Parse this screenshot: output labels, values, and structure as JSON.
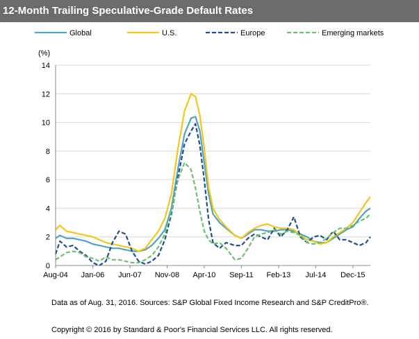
{
  "title": "12-Month Trailing Speculative-Grade Default Rates",
  "note": "Data as of Aug. 31, 2016. Sources: S&P Global Fixed Income Research and S&P CreditPro®.",
  "copyright": "Copyright © 2016 by Standard & Poor's Financial Services LLC. All rights reserved.",
  "chart_data": {
    "type": "line",
    "ylabel": "(%)",
    "ylim": [
      0,
      14
    ],
    "yticks": [
      0,
      2,
      4,
      6,
      8,
      10,
      12,
      14
    ],
    "xlim": [
      "2004-08",
      "2016-08"
    ],
    "xticks": [
      "Aug-04",
      "Jan-06",
      "Jun-07",
      "Nov-08",
      "Apr-10",
      "Sep-11",
      "Feb-13",
      "Jul-14",
      "Dec-15"
    ],
    "grid": "horizontal",
    "legend": "top",
    "series": [
      {
        "name": "Global",
        "color": "#4fa3c7",
        "style": "solid",
        "points": [
          [
            "2004-08",
            1.9
          ],
          [
            "2004-10",
            2.1
          ],
          [
            "2005-01",
            1.9
          ],
          [
            "2005-04",
            1.9
          ],
          [
            "2005-07",
            1.8
          ],
          [
            "2005-10",
            1.7
          ],
          [
            "2006-01",
            1.5
          ],
          [
            "2006-04",
            1.4
          ],
          [
            "2006-07",
            1.3
          ],
          [
            "2006-10",
            1.2
          ],
          [
            "2007-01",
            1.2
          ],
          [
            "2007-04",
            1.1
          ],
          [
            "2007-07",
            1.0
          ],
          [
            "2007-10",
            1.0
          ],
          [
            "2008-01",
            1.1
          ],
          [
            "2008-04",
            1.4
          ],
          [
            "2008-07",
            1.9
          ],
          [
            "2008-10",
            2.5
          ],
          [
            "2009-01",
            4.0
          ],
          [
            "2009-04",
            6.8
          ],
          [
            "2009-07",
            9.2
          ],
          [
            "2009-10",
            10.3
          ],
          [
            "2009-12",
            10.4
          ],
          [
            "2010-02",
            9.4
          ],
          [
            "2010-04",
            7.2
          ],
          [
            "2010-06",
            5.0
          ],
          [
            "2010-08",
            3.6
          ],
          [
            "2010-11",
            3.0
          ],
          [
            "2011-02",
            2.6
          ],
          [
            "2011-06",
            2.1
          ],
          [
            "2011-09",
            1.9
          ],
          [
            "2011-12",
            2.2
          ],
          [
            "2012-03",
            2.5
          ],
          [
            "2012-06",
            2.5
          ],
          [
            "2012-09",
            2.4
          ],
          [
            "2012-12",
            2.4
          ],
          [
            "2013-03",
            2.5
          ],
          [
            "2013-06",
            2.5
          ],
          [
            "2013-09",
            2.4
          ],
          [
            "2013-12",
            2.2
          ],
          [
            "2014-03",
            2.0
          ],
          [
            "2014-06",
            1.7
          ],
          [
            "2014-09",
            1.6
          ],
          [
            "2014-12",
            1.6
          ],
          [
            "2015-03",
            1.9
          ],
          [
            "2015-06",
            2.2
          ],
          [
            "2015-09",
            2.5
          ],
          [
            "2015-12",
            2.7
          ],
          [
            "2016-03",
            3.3
          ],
          [
            "2016-06",
            3.8
          ],
          [
            "2016-08",
            4.0
          ]
        ]
      },
      {
        "name": "U.S.",
        "color": "#f5c518",
        "style": "solid",
        "points": [
          [
            "2004-08",
            2.5
          ],
          [
            "2004-10",
            2.8
          ],
          [
            "2005-01",
            2.4
          ],
          [
            "2005-04",
            2.3
          ],
          [
            "2005-07",
            2.2
          ],
          [
            "2005-10",
            2.1
          ],
          [
            "2006-01",
            2.0
          ],
          [
            "2006-04",
            1.8
          ],
          [
            "2006-07",
            1.6
          ],
          [
            "2006-10",
            1.5
          ],
          [
            "2007-01",
            1.4
          ],
          [
            "2007-04",
            1.3
          ],
          [
            "2007-07",
            1.2
          ],
          [
            "2007-10",
            1.0
          ],
          [
            "2008-01",
            1.2
          ],
          [
            "2008-04",
            1.8
          ],
          [
            "2008-07",
            2.4
          ],
          [
            "2008-10",
            3.3
          ],
          [
            "2009-01",
            5.0
          ],
          [
            "2009-04",
            8.2
          ],
          [
            "2009-07",
            10.8
          ],
          [
            "2009-10",
            12.0
          ],
          [
            "2009-12",
            11.8
          ],
          [
            "2010-02",
            10.5
          ],
          [
            "2010-04",
            8.2
          ],
          [
            "2010-06",
            5.5
          ],
          [
            "2010-08",
            4.0
          ],
          [
            "2010-11",
            3.2
          ],
          [
            "2011-02",
            2.7
          ],
          [
            "2011-06",
            2.1
          ],
          [
            "2011-09",
            1.9
          ],
          [
            "2011-12",
            2.3
          ],
          [
            "2012-03",
            2.6
          ],
          [
            "2012-06",
            2.8
          ],
          [
            "2012-09",
            2.9
          ],
          [
            "2012-12",
            2.7
          ],
          [
            "2013-03",
            2.6
          ],
          [
            "2013-06",
            2.6
          ],
          [
            "2013-09",
            2.5
          ],
          [
            "2013-12",
            2.1
          ],
          [
            "2014-03",
            1.8
          ],
          [
            "2014-06",
            1.7
          ],
          [
            "2014-09",
            1.5
          ],
          [
            "2014-12",
            1.6
          ],
          [
            "2015-03",
            2.0
          ],
          [
            "2015-06",
            2.3
          ],
          [
            "2015-09",
            2.6
          ],
          [
            "2015-12",
            3.0
          ],
          [
            "2016-03",
            3.7
          ],
          [
            "2016-06",
            4.4
          ],
          [
            "2016-08",
            4.8
          ]
        ]
      },
      {
        "name": "Europe",
        "color": "#1f4e8c",
        "style": "dashed",
        "points": [
          [
            "2004-08",
            0.8
          ],
          [
            "2004-10",
            1.7
          ],
          [
            "2005-01",
            1.3
          ],
          [
            "2005-04",
            1.4
          ],
          [
            "2005-07",
            1.0
          ],
          [
            "2005-10",
            0.7
          ],
          [
            "2006-01",
            0.2
          ],
          [
            "2006-04",
            0.0
          ],
          [
            "2006-07",
            0.3
          ],
          [
            "2006-10",
            1.6
          ],
          [
            "2007-01",
            2.4
          ],
          [
            "2007-04",
            2.2
          ],
          [
            "2007-07",
            1.0
          ],
          [
            "2007-10",
            0.3
          ],
          [
            "2008-01",
            0.1
          ],
          [
            "2008-04",
            0.3
          ],
          [
            "2008-07",
            0.7
          ],
          [
            "2008-10",
            1.8
          ],
          [
            "2009-01",
            3.6
          ],
          [
            "2009-04",
            6.2
          ],
          [
            "2009-07",
            8.5
          ],
          [
            "2009-10",
            9.4
          ],
          [
            "2009-12",
            9.9
          ],
          [
            "2010-02",
            8.4
          ],
          [
            "2010-04",
            6.0
          ],
          [
            "2010-06",
            3.2
          ],
          [
            "2010-08",
            1.6
          ],
          [
            "2010-11",
            1.2
          ],
          [
            "2011-02",
            1.6
          ],
          [
            "2011-06",
            1.4
          ],
          [
            "2011-09",
            1.4
          ],
          [
            "2011-12",
            1.9
          ],
          [
            "2012-03",
            2.2
          ],
          [
            "2012-06",
            2.0
          ],
          [
            "2012-09",
            1.8
          ],
          [
            "2012-12",
            2.6
          ],
          [
            "2013-03",
            2.0
          ],
          [
            "2013-06",
            2.5
          ],
          [
            "2013-09",
            3.4
          ],
          [
            "2013-12",
            2.0
          ],
          [
            "2014-03",
            1.6
          ],
          [
            "2014-06",
            2.0
          ],
          [
            "2014-09",
            2.1
          ],
          [
            "2014-12",
            1.8
          ],
          [
            "2015-03",
            2.4
          ],
          [
            "2015-06",
            1.8
          ],
          [
            "2015-09",
            1.8
          ],
          [
            "2015-12",
            1.6
          ],
          [
            "2016-03",
            1.4
          ],
          [
            "2016-06",
            1.6
          ],
          [
            "2016-08",
            2.0
          ]
        ]
      },
      {
        "name": "Emerging markets",
        "color": "#6cbf6c",
        "style": "dashed",
        "points": [
          [
            "2004-08",
            0.4
          ],
          [
            "2004-10",
            0.6
          ],
          [
            "2005-01",
            0.9
          ],
          [
            "2005-04",
            1.0
          ],
          [
            "2005-07",
            0.9
          ],
          [
            "2005-10",
            0.6
          ],
          [
            "2006-01",
            0.5
          ],
          [
            "2006-04",
            0.3
          ],
          [
            "2006-07",
            0.6
          ],
          [
            "2006-10",
            0.4
          ],
          [
            "2007-01",
            0.4
          ],
          [
            "2007-04",
            0.3
          ],
          [
            "2007-07",
            0.2
          ],
          [
            "2007-10",
            0.2
          ],
          [
            "2008-01",
            0.4
          ],
          [
            "2008-04",
            0.7
          ],
          [
            "2008-07",
            1.3
          ],
          [
            "2008-10",
            2.2
          ],
          [
            "2009-01",
            3.8
          ],
          [
            "2009-04",
            6.0
          ],
          [
            "2009-07",
            7.2
          ],
          [
            "2009-10",
            6.7
          ],
          [
            "2009-12",
            5.4
          ],
          [
            "2010-02",
            3.8
          ],
          [
            "2010-04",
            2.4
          ],
          [
            "2010-06",
            1.8
          ],
          [
            "2010-08",
            1.5
          ],
          [
            "2010-11",
            1.6
          ],
          [
            "2011-02",
            1.2
          ],
          [
            "2011-06",
            0.4
          ],
          [
            "2011-09",
            0.5
          ],
          [
            "2011-12",
            1.2
          ],
          [
            "2012-03",
            2.0
          ],
          [
            "2012-06",
            2.2
          ],
          [
            "2012-09",
            2.3
          ],
          [
            "2012-12",
            2.5
          ],
          [
            "2013-03",
            2.2
          ],
          [
            "2013-06",
            2.4
          ],
          [
            "2013-09",
            2.3
          ],
          [
            "2013-12",
            2.1
          ],
          [
            "2014-03",
            1.6
          ],
          [
            "2014-06",
            1.5
          ],
          [
            "2014-09",
            1.6
          ],
          [
            "2014-12",
            1.9
          ],
          [
            "2015-03",
            2.3
          ],
          [
            "2015-06",
            2.6
          ],
          [
            "2015-09",
            2.6
          ],
          [
            "2015-12",
            2.8
          ],
          [
            "2016-03",
            3.1
          ],
          [
            "2016-06",
            3.3
          ],
          [
            "2016-08",
            3.6
          ]
        ]
      }
    ]
  }
}
